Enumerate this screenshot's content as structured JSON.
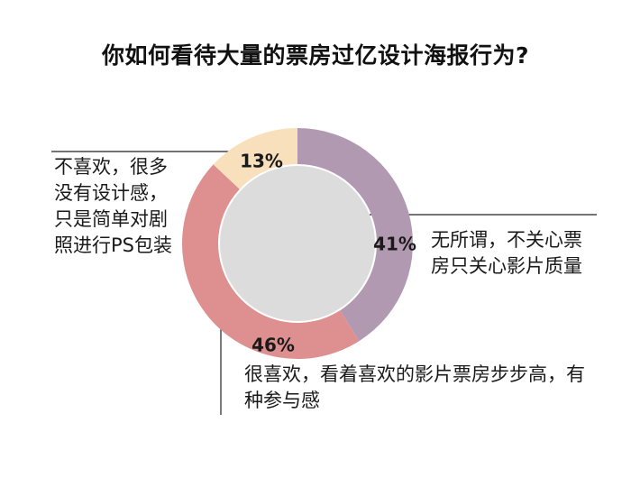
{
  "chart_data": {
    "type": "pie",
    "title": "你如何看待大量的票房过亿设计海报行为?",
    "categories": [
      "无所谓，不关心票房只关心影片质量",
      "很喜欢，看着喜欢的影片票房步步高，有种参与感",
      "不喜欢，很多没有设计感，只是简单对剧照进行PS包装"
    ],
    "values": [
      41,
      46,
      13
    ],
    "value_labels": [
      "41%",
      "46%",
      "13%"
    ],
    "colors": [
      "#b299b2",
      "#de8f8f",
      "#f8e0bc"
    ],
    "center_color": "#dcdcdc",
    "leader_color": "#222222"
  }
}
